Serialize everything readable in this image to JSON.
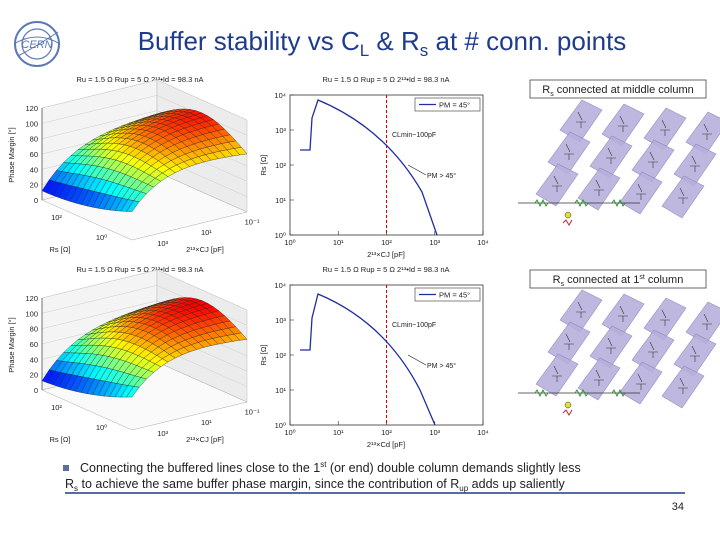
{
  "header": {
    "title": [
      "Buffer stability vs C",
      "L",
      " & R",
      "s",
      " at # conn. points"
    ],
    "page_number": "34"
  },
  "panels": [
    {
      "caption": [
        "R",
        "s",
        " connected at middle column"
      ],
      "surface": {
        "title": "Ru = 1.5 Ω  Rup = 5 Ω  2¹³•Id = 98.3 nA",
        "y_label": "Phase Margin [°]",
        "y_ticks": [
          "0",
          "20",
          "40",
          "60",
          "80",
          "100",
          "120"
        ],
        "x_label": "Rs [Ω]",
        "x_ticks": [
          "10²",
          "10⁰"
        ],
        "z_label": "2¹³×CJ [pF]",
        "z_ticks": [
          "10³",
          "10¹",
          "10⁻¹"
        ]
      },
      "plot": {
        "title": "Ru = 1.5 Ω  Rup = 5 Ω  2¹³•Id = 98.3 nA",
        "y_label": "Rs [Ω]",
        "y_ticks": [
          "10⁴",
          "10³",
          "10²",
          "10¹",
          "10⁰"
        ],
        "x_label": "2¹³×CJ [pF]",
        "x_ticks": [
          "10⁰",
          "10¹",
          "10²",
          "10³",
          "10⁴"
        ],
        "legend": "PM = 45°",
        "annotations": [
          "CLmin~100pF",
          "PM > 45°"
        ]
      }
    },
    {
      "caption": [
        "R",
        "s",
        " connected at 1",
        "st",
        " column"
      ],
      "surface": {
        "title": "Ru = 1.5 Ω  Rup = 5 Ω  2¹³•Id = 98.3 nA",
        "y_label": "Phase Margin [°]",
        "y_ticks": [
          "0",
          "20",
          "40",
          "60",
          "80",
          "100",
          "120"
        ],
        "x_label": "Rs [Ω]",
        "x_ticks": [
          "10²",
          "10⁰"
        ],
        "z_label": "2¹³×CJ [pF]",
        "z_ticks": [
          "10³",
          "10¹",
          "10⁻¹"
        ]
      },
      "plot": {
        "title": "Ru = 1.5 Ω  Rup = 5 Ω  2¹³•Id = 98.3 nA",
        "y_label": "Rs [Ω]",
        "y_ticks": [
          "10⁴",
          "10³",
          "10²",
          "10¹",
          "10⁰"
        ],
        "x_label": "2¹³×Cd [pF]",
        "x_ticks": [
          "10⁰",
          "10¹",
          "10²",
          "10³",
          "10⁴"
        ],
        "legend": "PM = 45°",
        "annotations": [
          "CLmin~100pF",
          "PM > 45°"
        ]
      }
    }
  ],
  "bullet": {
    "line1": [
      "Connecting the buffered lines close to the 1",
      "st",
      " (or end) double column demands slightly less"
    ],
    "line2": [
      "R",
      "s",
      " to achieve the same buffer phase margin, since the contribution of R",
      "up",
      " adds up saliently"
    ]
  }
}
